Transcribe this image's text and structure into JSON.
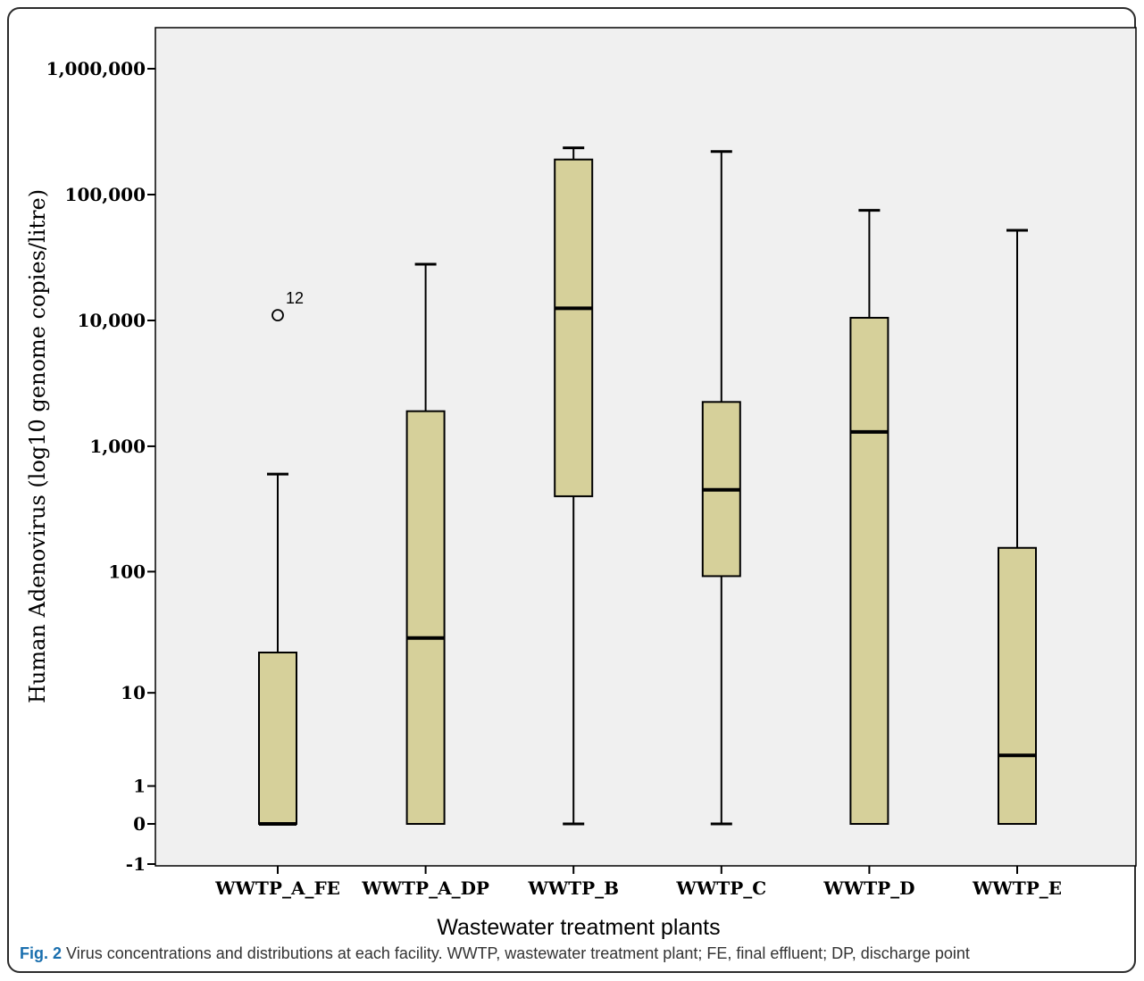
{
  "chart_data": {
    "type": "boxplot",
    "ylabel": "Human Adenovirus (log10 genome copies/litre)",
    "xlabel": "Wastewater treatment plants",
    "y_scale": "log10(x+1)",
    "ylim": [
      -1,
      2000000
    ],
    "y_ticks": [
      {
        "value": 1000000,
        "label": "1,000,000"
      },
      {
        "value": 100000,
        "label": "100,000"
      },
      {
        "value": 10000,
        "label": "10,000"
      },
      {
        "value": 1000,
        "label": "1,000"
      },
      {
        "value": 100,
        "label": "100"
      },
      {
        "value": 10,
        "label": "10"
      },
      {
        "value": 1,
        "label": "1"
      },
      {
        "value": 0,
        "label": "0"
      },
      {
        "value": -1,
        "label": "-1"
      }
    ],
    "categories": [
      "WWTP_A_FE",
      "WWTP_A_DP",
      "WWTP_B",
      "WWTP_C",
      "WWTP_D",
      "WWTP_E"
    ],
    "boxes": [
      {
        "category": "WWTP_A_FE",
        "whisker_low": 0,
        "q1": 0,
        "median": 0,
        "q3": 22,
        "whisker_high": 600
      },
      {
        "category": "WWTP_A_DP",
        "whisker_low": 0,
        "q1": 0,
        "median": 29,
        "q3": 1900,
        "whisker_high": 28000
      },
      {
        "category": "WWTP_B",
        "whisker_low": 0,
        "q1": 400,
        "median": 12500,
        "q3": 190000,
        "whisker_high": 235000
      },
      {
        "category": "WWTP_C",
        "whisker_low": 0,
        "q1": 92,
        "median": 450,
        "q3": 2250,
        "whisker_high": 220000
      },
      {
        "category": "WWTP_D",
        "whisker_low": 0,
        "q1": 0,
        "median": 1300,
        "q3": 10500,
        "whisker_high": 75000
      },
      {
        "category": "WWTP_E",
        "whisker_low": 0,
        "q1": 0,
        "median": 2.5,
        "q3": 155,
        "whisker_high": 52000
      }
    ],
    "outliers": [
      {
        "category": "WWTP_A_FE",
        "value": 11000,
        "label": "12"
      }
    ],
    "box_color": "#d6d09a",
    "plot_background": "#f0f0f0",
    "grid": false
  },
  "caption": {
    "fig_number": "Fig. 2",
    "text": " Virus concentrations and distributions at each facility. WWTP, wastewater treatment plant; FE, final effluent; DP, discharge point"
  }
}
